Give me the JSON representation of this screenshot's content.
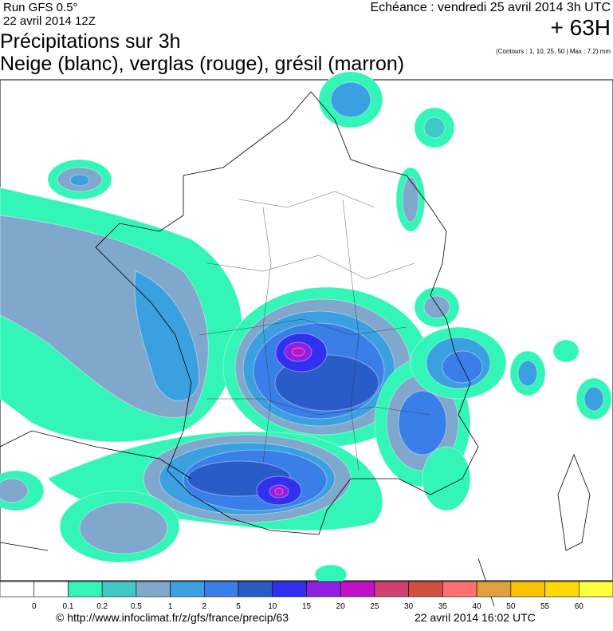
{
  "header": {
    "run": "Run GFS 0.5°",
    "run_date": "22 avril 2014 12Z",
    "title": "Précipitations sur 3h",
    "subtitle": "Neige (blanc), verglas (rouge), grésil (marron)",
    "valid": "Echéance : vendredi 25 avril 2014 3h UTC",
    "lead": "+ 63H",
    "contours": "(Contours : 1, 10, 25, 50 | Max : 7.2) mm"
  },
  "legend": {
    "labels": [
      0,
      0.1,
      0.2,
      0.5,
      1,
      2,
      5,
      10,
      15,
      20,
      25,
      30,
      35,
      40,
      50,
      55,
      60
    ],
    "colors": [
      "#ffffff",
      "#ffffff",
      "#33f5b8",
      "#40c8c8",
      "#80a8cc",
      "#3aa0e0",
      "#3a7ee8",
      "#2a5cc8",
      "#3030ee",
      "#9020e0",
      "#c010c8",
      "#d04070",
      "#d05040",
      "#ff7070",
      "#e0a040",
      "#ffc000",
      "#ffd800",
      "#ffff40"
    ]
  },
  "footer": {
    "url": "© http://www.infoclimat.fr/z/gfs/france/precip/63",
    "generated": "22 avril 2014 16:02 UTC"
  }
}
